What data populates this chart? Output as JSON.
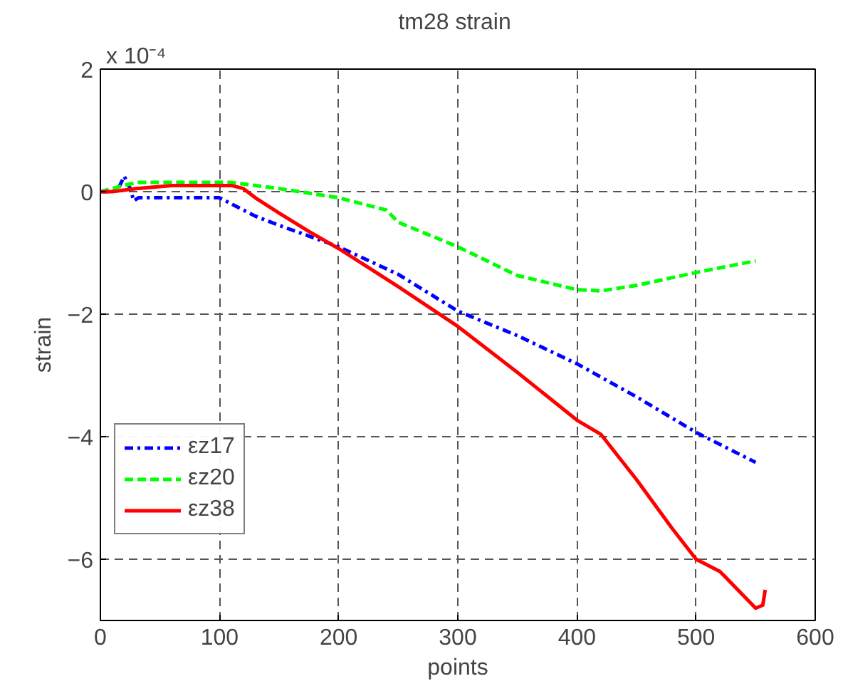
{
  "chart_data": {
    "type": "line",
    "title": "tm28  strain",
    "xlabel": "points",
    "ylabel": "strain",
    "annotations": [
      "x 10⁻⁴"
    ],
    "xlim": [
      0,
      600
    ],
    "ylim": [
      -7,
      2
    ],
    "xticks": [
      0,
      100,
      200,
      300,
      400,
      500,
      600
    ],
    "yticks": [
      -6,
      -4,
      -2,
      0,
      2
    ],
    "grid": true,
    "legend": "bottom left",
    "series": [
      {
        "name": "εz17",
        "color": "#0000ff",
        "line_style": "dashdot",
        "x": [
          0,
          10,
          15,
          20,
          25,
          28,
          32,
          40,
          100,
          110,
          130,
          150,
          200,
          250,
          300,
          350,
          400,
          450,
          500,
          550
        ],
        "values": [
          0,
          0,
          0.05,
          0.25,
          0.05,
          -0.15,
          -0.1,
          -0.1,
          -0.1,
          -0.2,
          -0.4,
          -0.55,
          -0.9,
          -1.35,
          -1.95,
          -2.35,
          -2.81,
          -3.35,
          -3.93,
          -4.42
        ]
      },
      {
        "name": "εz20",
        "color": "#00ff00",
        "line_style": "dashed",
        "x": [
          0,
          20,
          30,
          100,
          110,
          150,
          200,
          240,
          250,
          300,
          350,
          400,
          420,
          450,
          500,
          550
        ],
        "values": [
          0,
          0.1,
          0.15,
          0.15,
          0.15,
          0.05,
          -0.1,
          -0.3,
          -0.5,
          -0.9,
          -1.37,
          -1.6,
          -1.62,
          -1.53,
          -1.32,
          -1.13
        ]
      },
      {
        "name": "εz38",
        "color": "#ff0000",
        "line_style": "solid",
        "x": [
          0,
          10,
          30,
          60,
          100,
          110,
          120,
          130,
          150,
          175,
          200,
          250,
          300,
          350,
          400,
          420,
          450,
          480,
          500,
          520,
          550,
          556,
          558
        ],
        "values": [
          0,
          0,
          0.05,
          0.1,
          0.1,
          0.1,
          0.05,
          -0.1,
          -0.35,
          -0.65,
          -0.93,
          -1.55,
          -2.2,
          -2.95,
          -3.73,
          -3.96,
          -4.7,
          -5.5,
          -6.0,
          -6.2,
          -6.8,
          -6.75,
          -6.5
        ]
      }
    ]
  }
}
